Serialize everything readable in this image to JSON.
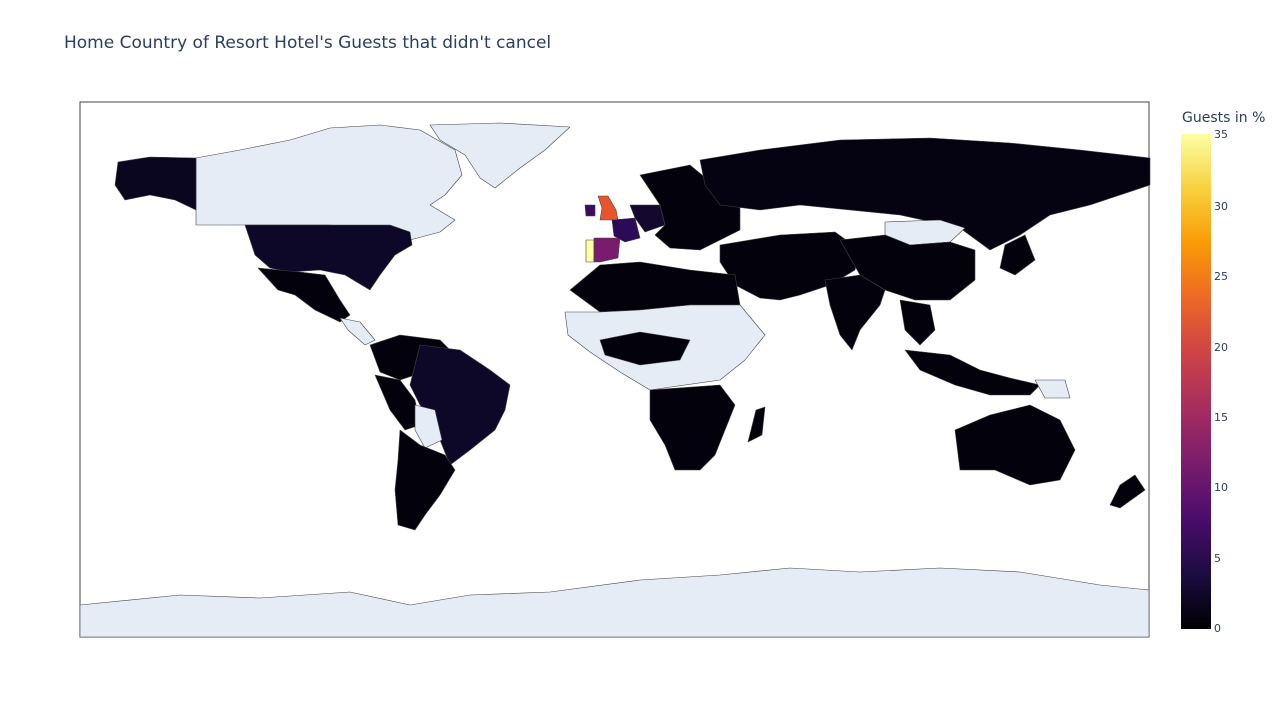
{
  "title": "Home Country of Resort Hotel's Guests that didn't cancel",
  "colorbar": {
    "title": "Guests in %",
    "ticks": [
      "35",
      "30",
      "25",
      "20",
      "15",
      "10",
      "5",
      "0"
    ],
    "range": [
      0,
      35
    ],
    "colorscale": [
      "#000004",
      "#1b0c41",
      "#4a0c6b",
      "#781c6d",
      "#a52c60",
      "#cf4446",
      "#ed6925",
      "#fb9b06",
      "#f7d13d",
      "#fcffa4"
    ]
  },
  "map_colors": {
    "ocean": "#ffffff",
    "land_no_data": "#e5ecf6",
    "border": "#444444"
  },
  "chart_data": {
    "type": "choropleth",
    "values_label": "Guests in %",
    "countries": [
      {
        "name": "Portugal",
        "value": 35
      },
      {
        "name": "United Kingdom",
        "value": 19
      },
      {
        "name": "Spain",
        "value": 11
      },
      {
        "name": "Ireland",
        "value": 7
      },
      {
        "name": "France",
        "value": 6
      },
      {
        "name": "Germany",
        "value": 4
      },
      {
        "name": "Netherlands",
        "value": 2
      },
      {
        "name": "Belgium",
        "value": 1
      },
      {
        "name": "Switzerland",
        "value": 1
      },
      {
        "name": "United States",
        "value": 1
      },
      {
        "name": "Brazil",
        "value": 1
      },
      {
        "name": "Russia",
        "value": 0.5
      }
    ]
  }
}
